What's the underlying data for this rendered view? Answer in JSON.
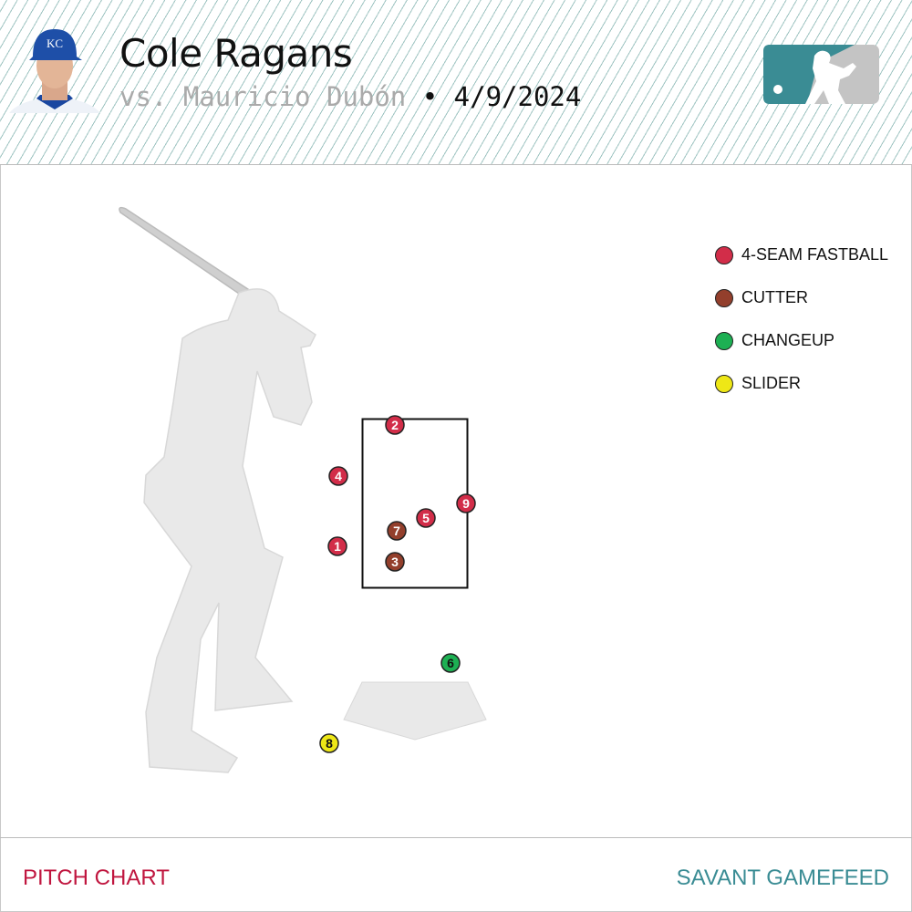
{
  "header": {
    "pitcher": "Cole Ragans",
    "batter_prefix": "vs. Mauricio Dubón",
    "separator": " • ",
    "date": "4/9/2024"
  },
  "legend": [
    {
      "label": "4-SEAM FASTBALL",
      "color": "#d22d49"
    },
    {
      "label": "CUTTER",
      "color": "#933f2c"
    },
    {
      "label": "CHANGEUP",
      "color": "#1db053"
    },
    {
      "label": "SLIDER",
      "color": "#eee716"
    }
  ],
  "pitches": [
    {
      "n": "1",
      "type": "4-SEAM FASTBALL"
    },
    {
      "n": "2",
      "type": "4-SEAM FASTBALL"
    },
    {
      "n": "3",
      "type": "CUTTER"
    },
    {
      "n": "4",
      "type": "4-SEAM FASTBALL"
    },
    {
      "n": "5",
      "type": "4-SEAM FASTBALL"
    },
    {
      "n": "6",
      "type": "CHANGEUP"
    },
    {
      "n": "7",
      "type": "CUTTER"
    },
    {
      "n": "8",
      "type": "SLIDER"
    },
    {
      "n": "9",
      "type": "4-SEAM FASTBALL"
    }
  ],
  "footer": {
    "left": "PITCH CHART",
    "right": "SAVANT GAMEFEED"
  }
}
